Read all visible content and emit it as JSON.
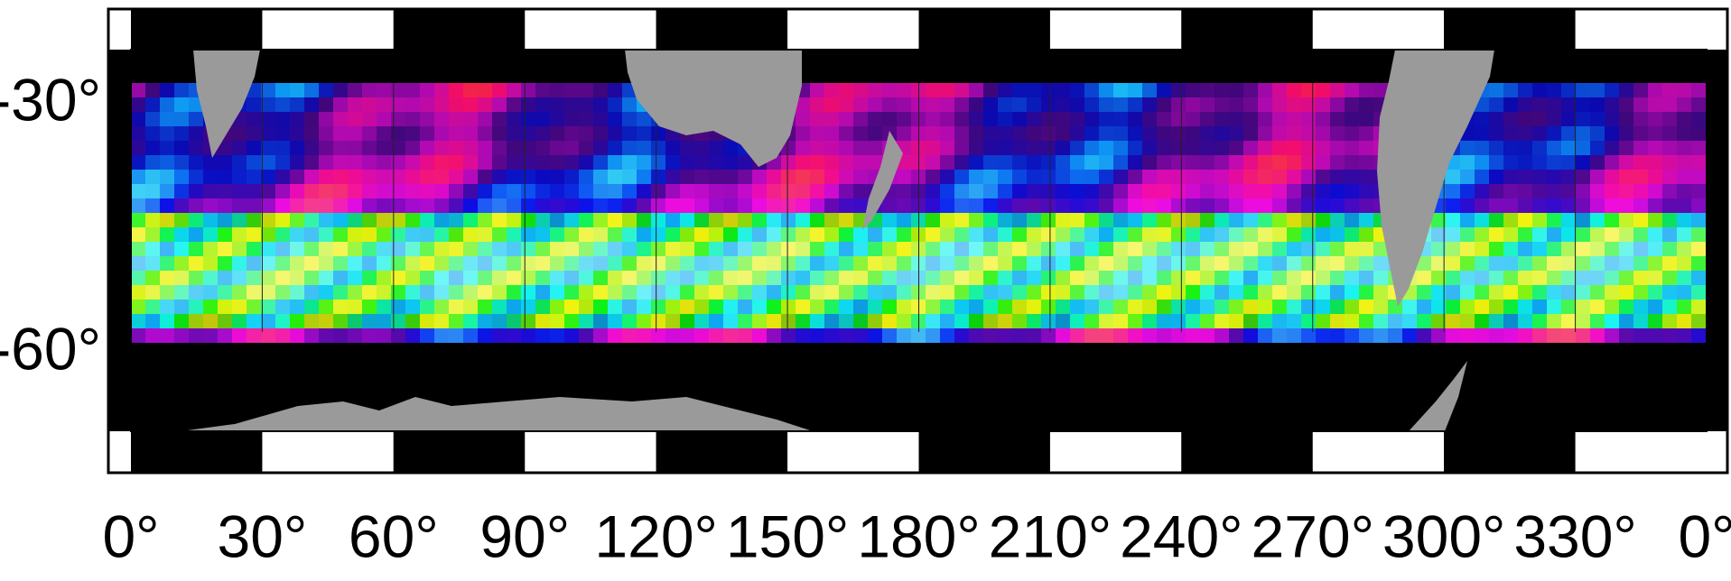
{
  "map": {
    "lat_labels": [
      "-30°",
      "-60°"
    ],
    "lon_labels": [
      "0°",
      "30°",
      "60°",
      "90°",
      "120°",
      "150°",
      "180°",
      "210°",
      "240°",
      "270°",
      "300°",
      "330°",
      "0°"
    ]
  }
}
